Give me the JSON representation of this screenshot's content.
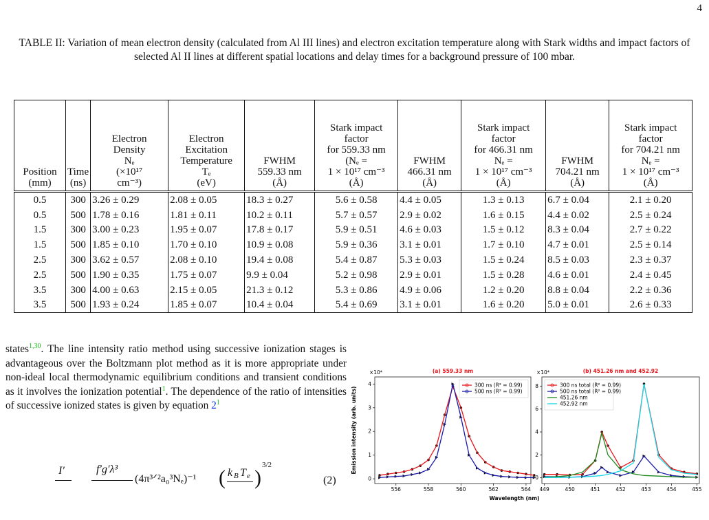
{
  "page_number": "4",
  "table": {
    "caption": "TABLE II: Variation of mean electron density (calculated from Al III lines) and electron excitation temperature along with Stark widths and impact factors of selected Al II lines at different spatial locations and delay times for a background pressure of 100 mbar.",
    "headers": [
      [
        "Position",
        "(mm)"
      ],
      [
        "Time",
        "(ns)"
      ],
      [
        "Electron",
        "Density",
        "Nₑ",
        "(×10¹⁷",
        "cm⁻³)"
      ],
      [
        "Electron",
        "Excitation",
        "Temperature",
        "Tₑ",
        "(eV)"
      ],
      [
        "FWHM",
        "559.33 nm",
        "(Å)"
      ],
      [
        "Stark impact",
        "factor",
        "for 559.33 nm",
        "(Nₑ =",
        "1 × 10¹⁷ cm⁻³",
        "(Å)"
      ],
      [
        "FWHM",
        "466.31 nm",
        "(Å)"
      ],
      [
        "Stark impact",
        "factor",
        "for 466.31 nm",
        "Nₑ =",
        "1 × 10¹⁷ cm⁻³",
        "(Å)"
      ],
      [
        "FWHM",
        "704.21 nm",
        "(Å)"
      ],
      [
        "Stark impact",
        "factor",
        "for 704.21 nm",
        "Nₑ =",
        "1 × 10¹⁷ cm⁻³",
        "(Å)"
      ]
    ],
    "rows": [
      [
        "0.5",
        "300",
        "3.26 ± 0.29",
        "2.08 ± 0.05",
        "18.3 ± 0.27",
        "5.6 ± 0.58",
        "4.4 ± 0.05",
        "1.3 ± 0.13",
        "6.7 ± 0.04",
        "2.1 ± 0.20"
      ],
      [
        "0.5",
        "500",
        "1.78 ± 0.16",
        "1.81 ± 0.11",
        "10.2 ± 0.11",
        "5.7 ± 0.57",
        "2.9 ± 0.02",
        "1.6 ± 0.15",
        "4.4 ± 0.02",
        "2.5 ± 0.24"
      ],
      [
        "1.5",
        "300",
        "3.00 ± 0.23",
        "1.95 ± 0.07",
        "17.8 ± 0.17",
        "5.9 ± 0.51",
        "4.6 ± 0.03",
        "1.5 ± 0.12",
        "8.3 ± 0.04",
        "2.7 ± 0.22"
      ],
      [
        "1.5",
        "500",
        "1.85 ± 0.10",
        "1.70 ± 0.10",
        "10.9 ± 0.08",
        "5.9 ± 0.36",
        "3.1 ± 0.01",
        "1.7 ± 0.10",
        "4.7 ± 0.01",
        "2.5 ± 0.14"
      ],
      [
        "2.5",
        "300",
        "3.62 ± 0.57",
        "2.08 ± 0.10",
        "19.4 ± 0.08",
        "5.4 ± 0.87",
        "5.3 ± 0.03",
        "1.5 ± 0.24",
        "8.5 ± 0.03",
        "2.3 ± 0.37"
      ],
      [
        "2.5",
        "500",
        "1.90 ± 0.35",
        "1.75 ± 0.07",
        "9.9 ± 0.04",
        "5.2 ± 0.98",
        "2.9 ± 0.01",
        "1.5 ± 0.28",
        "4.6 ± 0.01",
        "2.4 ± 0.45"
      ],
      [
        "3.5",
        "300",
        "4.00 ± 0.63",
        "2.15 ± 0.05",
        "21.3 ± 0.12",
        "5.3 ± 0.86",
        "4.9 ± 0.06",
        "1.2 ± 0.20",
        "8.8 ± 0.04",
        "2.2 ± 0.36"
      ],
      [
        "3.5",
        "500",
        "1.93 ± 0.24",
        "1.85 ± 0.07",
        "10.4 ± 0.04",
        "5.4 ± 0.69",
        "3.1 ± 0.01",
        "1.6 ± 0.20",
        "5.0 ± 0.01",
        "2.6 ± 0.33"
      ]
    ]
  },
  "paragraph": [
    "states",
    "1,30",
    ". The line intensity ratio method using successive ionization stages is advantageous over the Boltzmann plot method as it is more appropriate under non-ideal local thermodynamic equilibrium conditions and transient conditions as it involves the ionization potential",
    "1",
    ". The dependence of the ratio of intensities of successive ionized states is given by equation ",
    "2",
    "1"
  ],
  "equation": {
    "lhs": "I′",
    "rhs_numerator": "f′g′λ³",
    "factor": "(4π³ᐟ²a₀³Nₑ)⁻¹",
    "paren_open": "(",
    "k": "k",
    "k_sub": "B",
    "T": "T",
    "T_sub": "e",
    "paren_close": ")",
    "power": "3/2",
    "number": "(2)"
  },
  "chart_data": [
    {
      "type": "line",
      "title": "(a) 559.33 nm",
      "title_color": "#e8141b",
      "ylabel": "Emission intensity (arb. units)",
      "y_multiplier": "×10⁴",
      "x": [
        555,
        555.5,
        556,
        556.5,
        557,
        557.5,
        558,
        558.5,
        559,
        559.5,
        560,
        560.5,
        561,
        561.5,
        562,
        562.5,
        563,
        563.5,
        564,
        564.5
      ],
      "series": [
        {
          "name": "300 ns (R² = 0.99)",
          "color": "#e8141b",
          "marker": "circle",
          "values": [
            0.15,
            0.2,
            0.25,
            0.3,
            0.4,
            0.55,
            0.8,
            1.4,
            2.7,
            3.9,
            3.0,
            1.8,
            1.1,
            0.7,
            0.5,
            0.35,
            0.3,
            0.25,
            0.2,
            0.15
          ]
        },
        {
          "name": "500 ns (R² = 0.99)",
          "color": "#1a1aa8",
          "marker": "triangle",
          "values": [
            0.05,
            0.08,
            0.1,
            0.12,
            0.18,
            0.25,
            0.4,
            0.9,
            2.3,
            4.0,
            2.6,
            1.0,
            0.45,
            0.25,
            0.15,
            0.1,
            0.08,
            0.06,
            0.05,
            0.05
          ]
        }
      ],
      "xlim": [
        554.7,
        564.3
      ],
      "ylim": [
        -0.2,
        4.3
      ],
      "xticks": [
        556,
        558,
        560,
        562,
        564
      ],
      "yticks": [
        0,
        1,
        2,
        3,
        4
      ],
      "legend": "upper right"
    },
    {
      "type": "line",
      "title": "(b) 451.26 nm and 452.92",
      "title_color": "#e8141b",
      "xlabel": "Wavelength (nm)",
      "y_multiplier": "×10⁴",
      "x": [
        449,
        449.5,
        450,
        450.5,
        451,
        451.26,
        451.5,
        452,
        452.5,
        452.92,
        453.5,
        454,
        454.5,
        455
      ],
      "series": [
        {
          "name": "300 ns total (R² = 0.99)",
          "color": "#e8141b",
          "marker": "circle",
          "values": [
            0.3,
            0.3,
            0.25,
            0.3,
            1.5,
            4.0,
            2.8,
            0.9,
            1.5,
            8.2,
            2.0,
            0.8,
            0.5,
            0.35
          ]
        },
        {
          "name": "500 ns total (R² = 0.99)",
          "color": "#1a1aa8",
          "marker": "triangle",
          "values": [
            0.1,
            0.1,
            0.05,
            0.1,
            0.4,
            0.9,
            0.5,
            0.2,
            0.5,
            1.9,
            0.5,
            0.2,
            0.1,
            0.05
          ]
        },
        {
          "name": "451.26 nm",
          "color": "#1d8a1d",
          "values": [
            0.05,
            0.1,
            0.2,
            0.5,
            1.5,
            3.9,
            2.0,
            0.7,
            0.35,
            0.2,
            0.15,
            0.1,
            0.05,
            0.05
          ]
        },
        {
          "name": "452.92 nm",
          "color": "#18d8e8",
          "values": [
            0.02,
            0.03,
            0.05,
            0.08,
            0.15,
            0.2,
            0.3,
            0.6,
            1.3,
            8.2,
            1.8,
            0.7,
            0.4,
            0.3
          ]
        }
      ],
      "xlim": [
        448.9,
        455.1
      ],
      "ylim": [
        -0.5,
        8.8
      ],
      "xticks": [
        449,
        450,
        451,
        452,
        453,
        454,
        455
      ],
      "yticks": [
        0,
        2,
        4,
        6,
        8
      ],
      "legend": "upper left"
    }
  ]
}
